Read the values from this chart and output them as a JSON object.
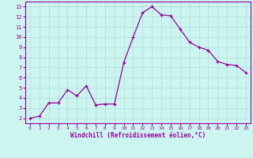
{
  "x": [
    0,
    1,
    2,
    3,
    4,
    5,
    6,
    7,
    8,
    9,
    10,
    11,
    12,
    13,
    14,
    15,
    16,
    17,
    18,
    19,
    20,
    21,
    22,
    23
  ],
  "y": [
    2.0,
    2.2,
    3.5,
    3.5,
    4.8,
    4.2,
    5.2,
    3.3,
    3.4,
    3.4,
    7.5,
    10.0,
    12.4,
    13.0,
    12.2,
    12.1,
    10.8,
    9.5,
    9.0,
    8.7,
    7.6,
    7.3,
    7.2,
    6.5
  ],
  "line_color": "#990099",
  "marker": "+",
  "marker_size": 3,
  "background_color": "#ccf5f0",
  "grid_color": "#aadddd",
  "xlabel": "Windchill (Refroidissement éolien,°C)",
  "xlabel_color": "#990099",
  "tick_color": "#990099",
  "spine_color": "#990099",
  "xlim": [
    -0.5,
    23.5
  ],
  "ylim": [
    1.5,
    13.5
  ],
  "yticks": [
    2,
    3,
    4,
    5,
    6,
    7,
    8,
    9,
    10,
    11,
    12,
    13
  ],
  "xticks": [
    0,
    1,
    2,
    3,
    4,
    5,
    6,
    7,
    8,
    9,
    10,
    11,
    12,
    13,
    14,
    15,
    16,
    17,
    18,
    19,
    20,
    21,
    22,
    23
  ]
}
